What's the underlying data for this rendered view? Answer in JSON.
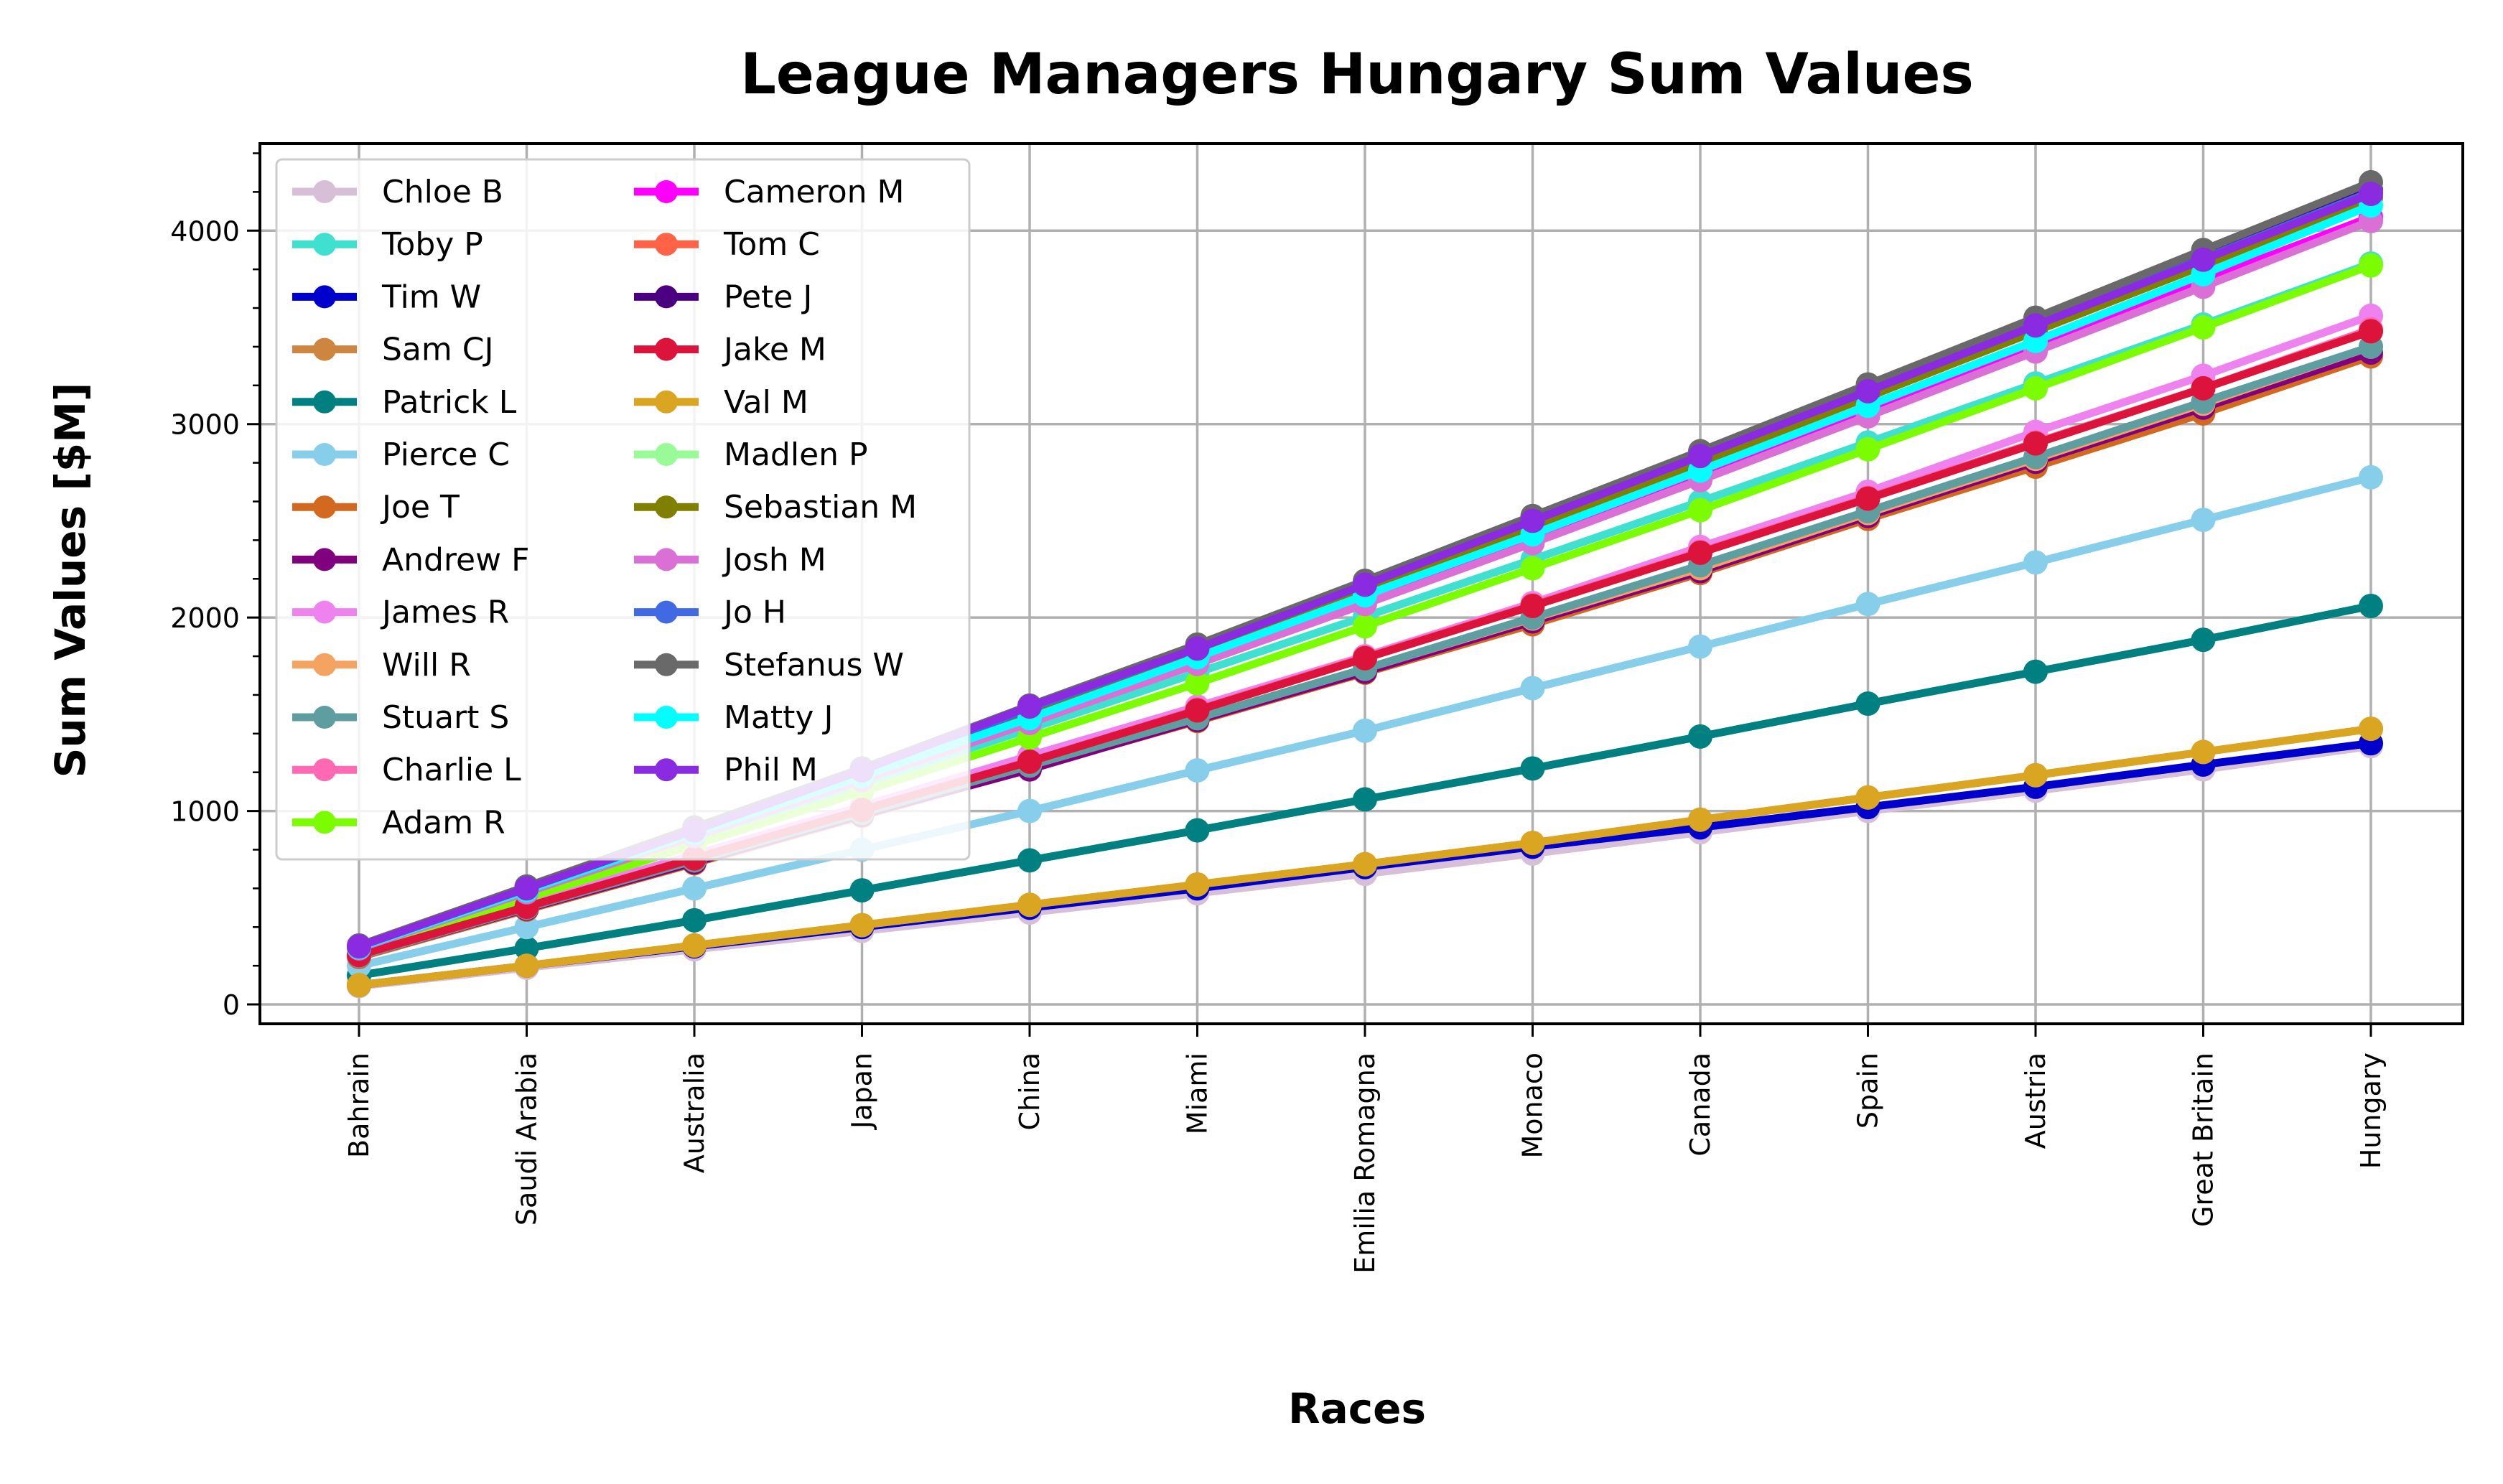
{
  "chart_data": {
    "type": "line",
    "title": "League Managers Hungary Sum Values",
    "xlabel": "Races",
    "ylabel": "Sum Values [$M]",
    "x": [
      "Bahrain",
      "Saudi Arabia",
      "Australia",
      "Japan",
      "China",
      "Miami",
      "Emilia Romagna",
      "Monaco",
      "Canada",
      "Spain",
      "Austria",
      "Great Britain",
      "Hungary"
    ],
    "ylim": [
      -100,
      4450
    ],
    "yticks": [
      0,
      1000,
      2000,
      3000,
      4000
    ],
    "grid": true,
    "legend": {
      "placement": "upper-left",
      "columns": 2
    },
    "series": [
      {
        "name": "Chloe B",
        "color": "#d8bfd8",
        "values": [
          95,
          190,
          285,
          380,
          475,
          575,
          675,
          780,
          890,
          1000,
          1105,
          1215,
          1335
        ]
      },
      {
        "name": "Toby P",
        "color": "#40e0d0",
        "values": [
          290,
          575,
          855,
          1140,
          1425,
          1715,
          2005,
          2300,
          2600,
          2905,
          3210,
          3515,
          3830
        ]
      },
      {
        "name": "Tim W",
        "color": "#0000cd",
        "values": [
          100,
          200,
          300,
          400,
          500,
          600,
          710,
          815,
          915,
          1020,
          1125,
          1240,
          1350
        ]
      },
      {
        "name": "Sam CJ",
        "color": "#cd853f",
        "values": [
          100,
          200,
          305,
          410,
          515,
          620,
          725,
          835,
          955,
          1070,
          1185,
          1305,
          1425
        ]
      },
      {
        "name": "Patrick L",
        "color": "#008080",
        "values": [
          150,
          290,
          435,
          590,
          745,
          900,
          1060,
          1220,
          1385,
          1555,
          1720,
          1885,
          2060
        ]
      },
      {
        "name": "Pierce C",
        "color": "#87ceeb",
        "values": [
          200,
          400,
          600,
          800,
          1000,
          1210,
          1415,
          1635,
          1850,
          2070,
          2285,
          2505,
          2725
        ]
      },
      {
        "name": "Joe T",
        "color": "#d2691e",
        "values": [
          245,
          490,
          730,
          975,
          1220,
          1465,
          1715,
          1965,
          2230,
          2510,
          2780,
          3055,
          3350
        ]
      },
      {
        "name": "Andrew F",
        "color": "#800080",
        "values": [
          250,
          495,
          735,
          980,
          1215,
          1470,
          1720,
          1980,
          2240,
          2525,
          2805,
          3085,
          3370
        ]
      },
      {
        "name": "James R",
        "color": "#ee82ee",
        "values": [
          260,
          520,
          775,
          1025,
          1285,
          1540,
          1800,
          2075,
          2365,
          2650,
          2960,
          3250,
          3560
        ]
      },
      {
        "name": "Will R",
        "color": "#f4a460",
        "values": [
          250,
          500,
          745,
          990,
          1235,
          1480,
          1735,
          1995,
          2255,
          2540,
          2820,
          3105,
          3400
        ]
      },
      {
        "name": "Stuart S",
        "color": "#5f9ea0",
        "values": [
          250,
          500,
          745,
          990,
          1235,
          1480,
          1735,
          2000,
          2270,
          2550,
          2830,
          3115,
          3400
        ]
      },
      {
        "name": "Charlie L",
        "color": "#ff69b4",
        "values": [
          255,
          505,
          755,
          1005,
          1255,
          1525,
          1795,
          2065,
          2340,
          2620,
          2905,
          3185,
          3490
        ]
      },
      {
        "name": "Adam R",
        "color": "#7cfc00",
        "values": [
          275,
          550,
          825,
          1100,
          1380,
          1660,
          1955,
          2255,
          2555,
          2870,
          3185,
          3500,
          3820
        ]
      },
      {
        "name": "Cameron M",
        "color": "#ff00ff",
        "values": [
          295,
          590,
          885,
          1180,
          1490,
          1795,
          2115,
          2420,
          2750,
          3080,
          3410,
          3740,
          4070
        ]
      },
      {
        "name": "Tom C",
        "color": "#ff6347",
        "values": [
          255,
          505,
          755,
          1005,
          1255,
          1520,
          1790,
          2060,
          2335,
          2615,
          2900,
          3185,
          3480
        ]
      },
      {
        "name": "Pete J",
        "color": "#4b0082",
        "values": [
          300,
          600,
          900,
          1200,
          1530,
          1835,
          2170,
          2500,
          2835,
          3175,
          3515,
          3860,
          4210
        ]
      },
      {
        "name": "Jake M",
        "color": "#dc143c",
        "values": [
          255,
          505,
          755,
          1005,
          1255,
          1520,
          1790,
          2060,
          2335,
          2615,
          2900,
          3185,
          3480
        ]
      },
      {
        "name": "Val M",
        "color": "#daa520",
        "values": [
          100,
          200,
          305,
          410,
          515,
          620,
          725,
          835,
          955,
          1070,
          1185,
          1305,
          1425
        ]
      },
      {
        "name": "Madlen P",
        "color": "#98fb98",
        "values": [
          300,
          600,
          900,
          1200,
          1520,
          1830,
          2150,
          2480,
          2810,
          3150,
          3490,
          3830,
          4180
        ]
      },
      {
        "name": "Sebastian M",
        "color": "#808000",
        "values": [
          295,
          590,
          885,
          1185,
          1500,
          1815,
          2140,
          2470,
          2800,
          3140,
          3480,
          3820,
          4170
        ]
      },
      {
        "name": "Josh M",
        "color": "#da70d6",
        "values": [
          290,
          580,
          870,
          1160,
          1455,
          1760,
          2070,
          2385,
          2710,
          3040,
          3375,
          3710,
          4050
        ]
      },
      {
        "name": "Jo H",
        "color": "#4169e1",
        "values": [
          300,
          600,
          900,
          1200,
          1530,
          1840,
          2170,
          2500,
          2835,
          3170,
          3510,
          3855,
          4200
        ]
      },
      {
        "name": "Stefanus W",
        "color": "#696969",
        "values": [
          305,
          610,
          915,
          1220,
          1545,
          1860,
          2190,
          2525,
          2860,
          3205,
          3550,
          3900,
          4250
        ]
      },
      {
        "name": "Matty J",
        "color": "#00ffff",
        "values": [
          295,
          590,
          885,
          1180,
          1480,
          1795,
          2115,
          2430,
          2760,
          3095,
          3430,
          3775,
          4130
        ]
      },
      {
        "name": "Phil M",
        "color": "#8a2be2",
        "values": [
          300,
          600,
          900,
          1210,
          1540,
          1840,
          2170,
          2500,
          2835,
          3170,
          3510,
          3850,
          4190
        ]
      }
    ]
  }
}
